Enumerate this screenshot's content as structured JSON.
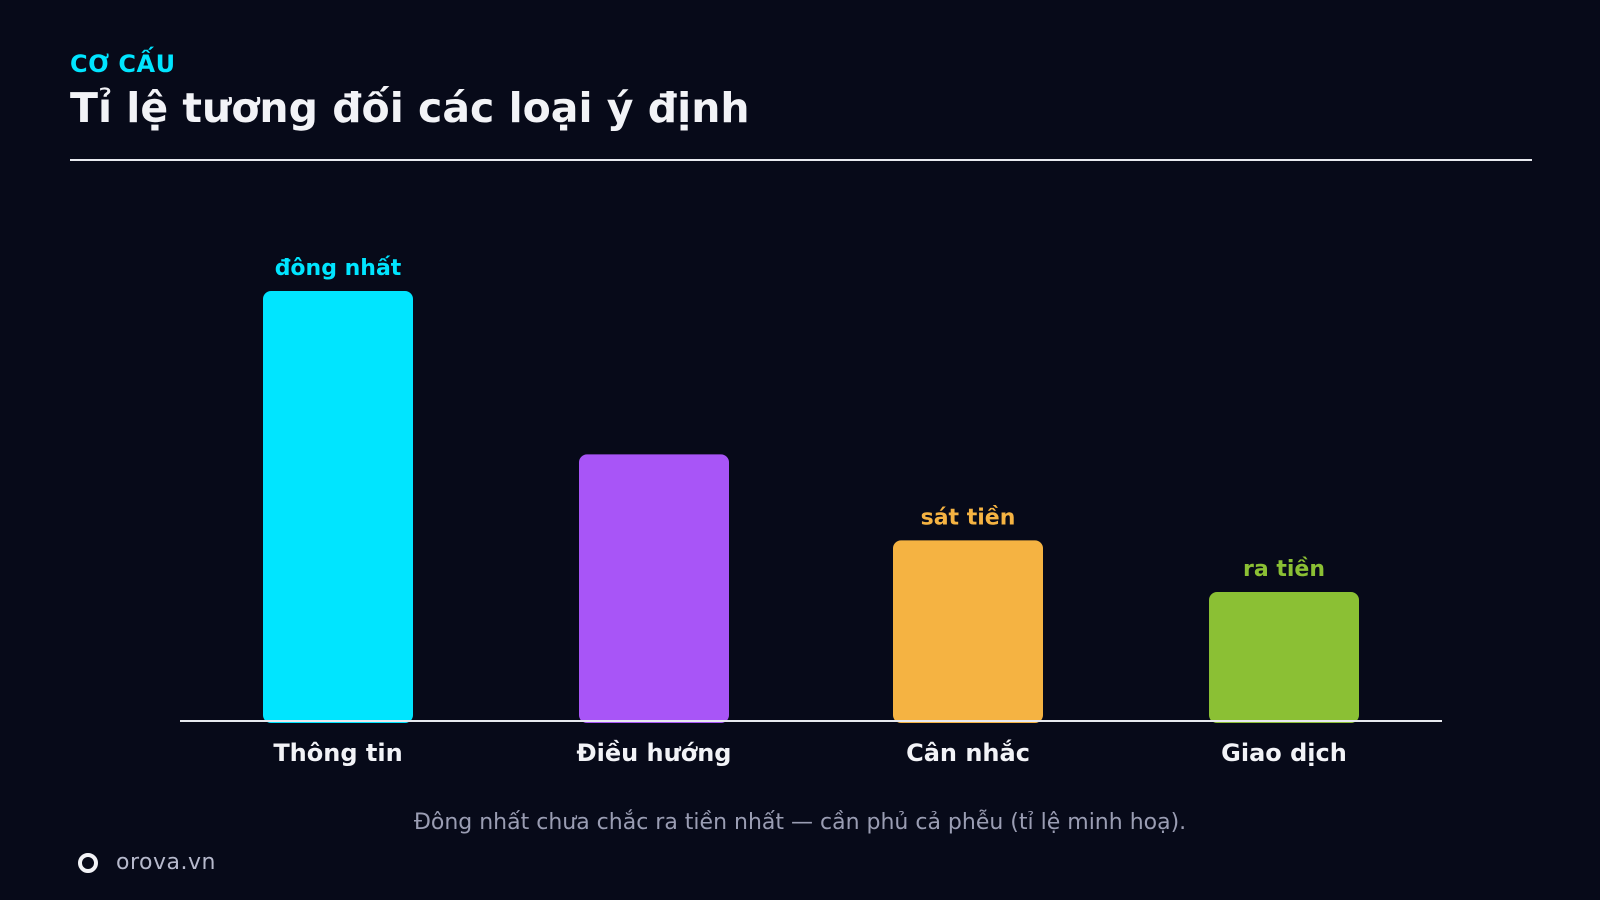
{
  "header": {
    "eyebrow": "CƠ CẤU",
    "title": "Tỉ lệ tương đối các loại ý định"
  },
  "chart_data": {
    "type": "bar",
    "categories": [
      "Thông tin",
      "Điều hướng",
      "Cân nhắc",
      "Giao dịch"
    ],
    "values": [
      100,
      62,
      42,
      30
    ],
    "bar_labels": [
      "đông nhất",
      "",
      "sát tiền",
      "ra tiền"
    ],
    "colors": [
      "#00e5ff",
      "#a855f7",
      "#f5b342",
      "#8bc034"
    ],
    "ylim": [
      0,
      100
    ],
    "grid": false,
    "legend": "none",
    "title": "",
    "xlabel": "",
    "ylabel": ""
  },
  "caption": "Đông nhất chưa chắc ra tiền nhất — cần phủ cả phễu (tỉ lệ minh hoạ).",
  "footer": {
    "logo_icon": "ring-logo-icon",
    "brand": "orova.vn"
  }
}
